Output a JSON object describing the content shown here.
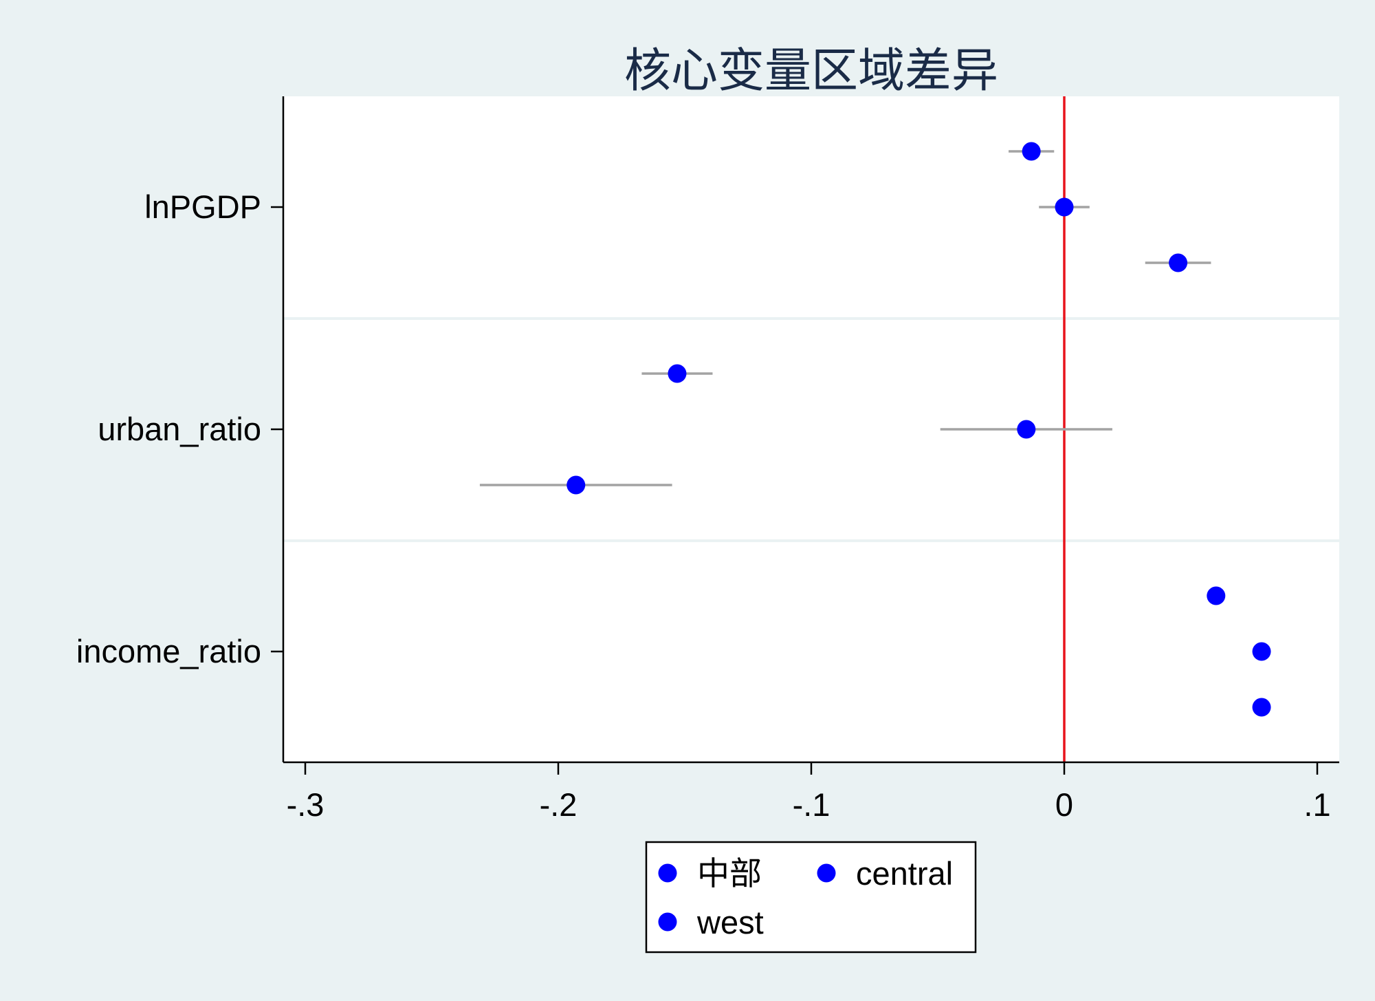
{
  "chart_data": {
    "type": "coefficient-plot",
    "title": "核心变量区域差异",
    "xlim": [
      -0.31,
      0.11
    ],
    "xticks": [
      -0.3,
      -0.2,
      -0.1,
      0,
      0.1
    ],
    "xtick_labels": [
      "-.3",
      "-.2",
      "-.1",
      "0",
      ".1"
    ],
    "categories": [
      "lnPGDP",
      "urban_ratio",
      "income_ratio"
    ],
    "reference_line": {
      "x": 0,
      "color": "#e8141c"
    },
    "grid": "horizontal separators between categories",
    "legend": {
      "placement": "bottom-center",
      "columns": 2
    },
    "series": [
      {
        "name": "中部",
        "color": "#0000ff",
        "points": [
          {
            "category": "lnPGDP",
            "value": -0.013,
            "ci": [
              -0.022,
              -0.004
            ]
          },
          {
            "category": "urban_ratio",
            "value": -0.153,
            "ci": [
              -0.167,
              -0.139
            ]
          },
          {
            "category": "income_ratio",
            "value": 0.06,
            "ci": [
              0.06,
              0.06
            ]
          }
        ]
      },
      {
        "name": "central",
        "color": "#0000ff",
        "points": [
          {
            "category": "lnPGDP",
            "value": 0.0,
            "ci": [
              -0.01,
              0.01
            ]
          },
          {
            "category": "urban_ratio",
            "value": -0.015,
            "ci": [
              -0.049,
              0.019
            ]
          },
          {
            "category": "income_ratio",
            "value": 0.078,
            "ci": [
              0.078,
              0.078
            ]
          }
        ]
      },
      {
        "name": "west",
        "color": "#0000ff",
        "points": [
          {
            "category": "lnPGDP",
            "value": 0.045,
            "ci": [
              0.032,
              0.058
            ]
          },
          {
            "category": "urban_ratio",
            "value": -0.193,
            "ci": [
              -0.231,
              -0.155
            ]
          },
          {
            "category": "income_ratio",
            "value": 0.078,
            "ci": [
              0.078,
              0.078
            ]
          }
        ]
      }
    ]
  }
}
